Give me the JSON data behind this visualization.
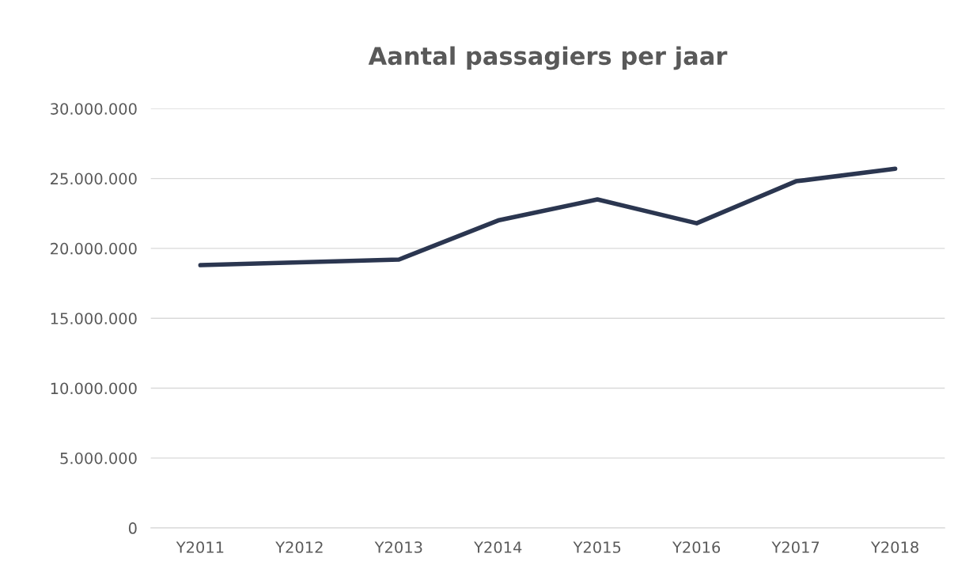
{
  "chart_data": {
    "type": "line",
    "title": "Aantal passagiers per jaar",
    "categories": [
      "Y2011",
      "Y2012",
      "Y2013",
      "Y2014",
      "Y2015",
      "Y2016",
      "Y2017",
      "Y2018"
    ],
    "series": [
      {
        "color": "#2b3650",
        "values": [
          18800000,
          19000000,
          19200000,
          22000000,
          23500000,
          21800000,
          24800000,
          25700000
        ]
      }
    ],
    "ylim": [
      0,
      30000000
    ],
    "yticks": [
      {
        "value": 0,
        "label": "0"
      },
      {
        "value": 5000000,
        "label": "5.000.000"
      },
      {
        "value": 10000000,
        "label": "10.000.000"
      },
      {
        "value": 15000000,
        "label": "15.000.000"
      },
      {
        "value": 20000000,
        "label": "20.000.000"
      },
      {
        "value": 25000000,
        "label": "25.000.000"
      },
      {
        "value": 30000000,
        "label": "30.000.000"
      }
    ],
    "grid": "y",
    "marker": "none",
    "line_style": "solid"
  }
}
